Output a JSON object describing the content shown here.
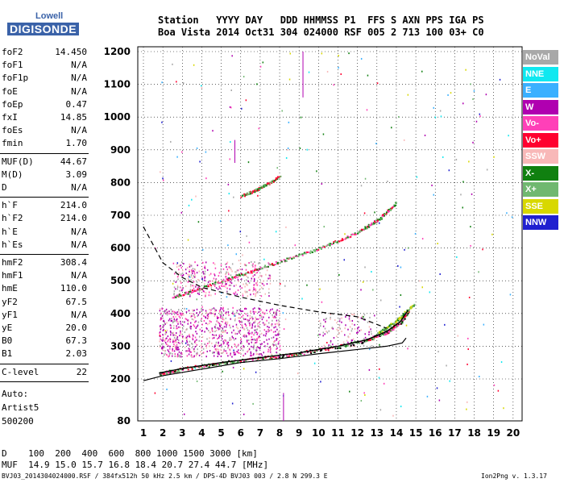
{
  "logo": {
    "line1": "Lowell",
    "line2": "DIGISONDE"
  },
  "header": {
    "line1": "Station   YYYY DAY   DDD HHMMSS P1  FFS S AXN PPS IGA PS",
    "line2": "Boa Vista 2014 Oct31 304 024000 RSF 005 2 713 100 03+ C0"
  },
  "params": [
    {
      "name": "foF2",
      "value": "14.450"
    },
    {
      "name": "foF1",
      "value": "N/A"
    },
    {
      "name": "foF1p",
      "value": "N/A"
    },
    {
      "name": "foE",
      "value": "N/A"
    },
    {
      "name": "foEp",
      "value": "0.47"
    },
    {
      "name": "fxI",
      "value": "14.85"
    },
    {
      "name": "foEs",
      "value": "N/A"
    },
    {
      "name": "fmin",
      "value": "1.70"
    },
    {
      "name": "MUF(D)",
      "value": "44.67"
    },
    {
      "name": "M(D)",
      "value": "3.09"
    },
    {
      "name": "D",
      "value": "N/A"
    },
    {
      "name": "h`F",
      "value": "214.0"
    },
    {
      "name": "h`F2",
      "value": "214.0"
    },
    {
      "name": "h`E",
      "value": "N/A"
    },
    {
      "name": "h`Es",
      "value": "N/A"
    },
    {
      "name": "hmF2",
      "value": "308.4"
    },
    {
      "name": "hmF1",
      "value": "N/A"
    },
    {
      "name": "hmE",
      "value": "110.0"
    },
    {
      "name": "yF2",
      "value": "67.5"
    },
    {
      "name": "yF1",
      "value": "N/A"
    },
    {
      "name": "yE",
      "value": "20.0"
    },
    {
      "name": "B0",
      "value": "67.3"
    },
    {
      "name": "B1",
      "value": "2.03"
    },
    {
      "name": "C-level",
      "value": "22"
    }
  ],
  "auto": {
    "line1": "Auto:",
    "line2": "Artist5",
    "line3": "500200"
  },
  "legend": [
    {
      "label": "NoVal",
      "color": "#a8a8a8"
    },
    {
      "label": "NNE",
      "color": "#10e8f0"
    },
    {
      "label": "E",
      "color": "#3ab0ff"
    },
    {
      "label": "W",
      "color": "#b000b0"
    },
    {
      "label": "Vo-",
      "color": "#ff40b8"
    },
    {
      "label": "Vo+",
      "color": "#ff0030"
    },
    {
      "label": "SSW",
      "color": "#f8b8b8"
    },
    {
      "label": "X-",
      "color": "#108010"
    },
    {
      "label": "X+",
      "color": "#70b870"
    },
    {
      "label": "SSE",
      "color": "#d8d800"
    },
    {
      "label": "NNW",
      "color": "#2020d0"
    }
  ],
  "muf_table": {
    "d_row": "D    100  200  400  600  800 1000 1500 3000 [km]",
    "muf_row": "MUF  14.9 15.0 15.7 16.8 18.4 20.7 27.4 44.7 [MHz]"
  },
  "footer": {
    "left": "BVJ03_2014304024000.RSF / 384fx512h 50 kHz 2.5 km / DPS-4D BVJ03 003 / 2.8 N 299.3 E",
    "right": "Ion2Png v. 1.3.17"
  },
  "chart_data": {
    "type": "scatter",
    "x_ticks": [
      "1",
      "2",
      "3",
      "4",
      "5",
      "6",
      "7",
      "8",
      "9",
      "10",
      "11",
      "12",
      "13",
      "14",
      "15",
      "16",
      "17",
      "18",
      "19",
      "20"
    ],
    "y_ticks": [
      "80",
      "200",
      "300",
      "400",
      "500",
      "600",
      "700",
      "800",
      "900",
      "1000",
      "1100",
      "1200"
    ],
    "xlim": [
      0.9,
      20.2
    ],
    "ylim": [
      80,
      1210
    ],
    "grid": true,
    "profile_curve": [
      [
        1.0,
        195
      ],
      [
        2,
        210
      ],
      [
        4,
        230
      ],
      [
        6,
        250
      ],
      [
        8,
        262
      ],
      [
        10,
        277
      ],
      [
        12,
        290
      ],
      [
        13.5,
        300
      ],
      [
        14.3,
        310
      ],
      [
        14.5,
        325
      ]
    ],
    "o_trace": [
      [
        1.8,
        218
      ],
      [
        3,
        232
      ],
      [
        5,
        250
      ],
      [
        7,
        265
      ],
      [
        9,
        280
      ],
      [
        11,
        300
      ],
      [
        12.5,
        320
      ],
      [
        13.5,
        345
      ],
      [
        14.2,
        375
      ],
      [
        14.6,
        410
      ]
    ],
    "o2_trace": [
      [
        2.5,
        450
      ],
      [
        4,
        480
      ],
      [
        6,
        520
      ],
      [
        8,
        560
      ],
      [
        10,
        600
      ],
      [
        12,
        650
      ],
      [
        13,
        685
      ],
      [
        14,
        740
      ]
    ],
    "o3_trace": [
      [
        6,
        760
      ],
      [
        7,
        785
      ],
      [
        8,
        820
      ]
    ],
    "x_trace": [
      [
        13,
        340
      ],
      [
        14,
        380
      ],
      [
        14.9,
        430
      ]
    ],
    "dashed_curve": [
      [
        1,
        665
      ],
      [
        2,
        555
      ],
      [
        3,
        510
      ],
      [
        4,
        480
      ],
      [
        6,
        450
      ],
      [
        8,
        425
      ],
      [
        10,
        405
      ],
      [
        12,
        390
      ],
      [
        13.5,
        355
      ]
    ]
  }
}
